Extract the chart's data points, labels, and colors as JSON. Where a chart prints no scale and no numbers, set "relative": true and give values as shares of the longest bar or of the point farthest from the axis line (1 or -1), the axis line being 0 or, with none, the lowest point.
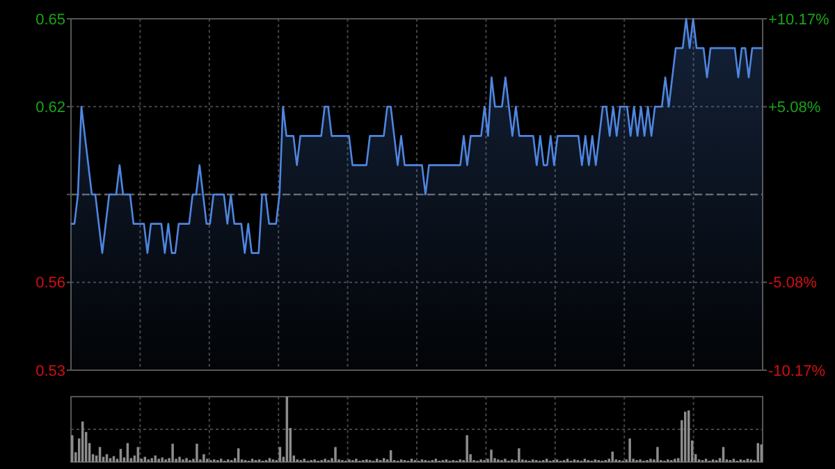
{
  "chart_data": [
    {
      "type": "area",
      "color": "#4f86e0",
      "grid": true,
      "ylim": [
        0.53,
        0.65
      ],
      "yticks": [
        0.53,
        0.56,
        {
          "value": 0.59,
          "label": null
        },
        0.62,
        0.65
      ],
      "y2lim": [
        -10.17,
        10.17
      ],
      "y2ticks": [
        {
          "value": -10.17,
          "label": "-10.17%"
        },
        {
          "value": -5.08,
          "label": "-5.08%"
        },
        {
          "value": 5.08,
          "label": "+5.08%"
        },
        {
          "value": 10.17,
          "label": "+10.17%"
        }
      ],
      "ref_lines": [
        {
          "axis": "y",
          "value": 0.59,
          "line_style": "dashed"
        }
      ],
      "categories": [
        null,
        null,
        null,
        null,
        null,
        null,
        null,
        null,
        null,
        null,
        null,
        null,
        null,
        null,
        null,
        null,
        null,
        null,
        null,
        null,
        null,
        null,
        null,
        null,
        null,
        null,
        null,
        null,
        null,
        null,
        null,
        null,
        null,
        null,
        null,
        null,
        null,
        null,
        null,
        null,
        null,
        null,
        null,
        null,
        null,
        null,
        null,
        null,
        null,
        null,
        null,
        null,
        null,
        null,
        null,
        null,
        null,
        null,
        null,
        null,
        null,
        null,
        null,
        null,
        null,
        null,
        null,
        null,
        null,
        null,
        null,
        null,
        null,
        null,
        null,
        null,
        null,
        null,
        null,
        null,
        null,
        null,
        null,
        null,
        null,
        null,
        null,
        null,
        null,
        null,
        null,
        null,
        null,
        null,
        null,
        null,
        null,
        null,
        null,
        null,
        null,
        null,
        null,
        null,
        null,
        null,
        null,
        null,
        null,
        null,
        null,
        null,
        null,
        null,
        null,
        null,
        null,
        null,
        null,
        null,
        null,
        null,
        null,
        null,
        null,
        null,
        null,
        null,
        null,
        null,
        null,
        null,
        null,
        null,
        null,
        null,
        null,
        null,
        null,
        null,
        null,
        null,
        null,
        null,
        null,
        null,
        null,
        null,
        null,
        null,
        null,
        null,
        null,
        null,
        null,
        null,
        null,
        null,
        null,
        null,
        null,
        null,
        null,
        null,
        null,
        null,
        null,
        null,
        null,
        null,
        null,
        null,
        null,
        null,
        null,
        null,
        null,
        null,
        null,
        null,
        null,
        null,
        null,
        null,
        null,
        null,
        null,
        null,
        null,
        null,
        null,
        null,
        null,
        null,
        null,
        null,
        null,
        null,
        null,
        null
      ],
      "values": [
        0.58,
        0.58,
        0.59,
        0.62,
        0.61,
        0.6,
        0.59,
        0.59,
        0.58,
        0.57,
        0.58,
        0.59,
        0.59,
        0.59,
        0.6,
        0.59,
        0.59,
        0.59,
        0.58,
        0.58,
        0.58,
        0.58,
        0.57,
        0.58,
        0.58,
        0.58,
        0.58,
        0.57,
        0.58,
        0.57,
        0.57,
        0.58,
        0.58,
        0.58,
        0.58,
        0.59,
        0.59,
        0.6,
        0.59,
        0.58,
        0.58,
        0.59,
        0.59,
        0.59,
        0.59,
        0.58,
        0.59,
        0.58,
        0.58,
        0.58,
        0.57,
        0.58,
        0.57,
        0.57,
        0.57,
        0.59,
        0.59,
        0.58,
        0.58,
        0.58,
        0.59,
        0.62,
        0.61,
        0.61,
        0.61,
        0.6,
        0.61,
        0.61,
        0.61,
        0.61,
        0.61,
        0.61,
        0.61,
        0.62,
        0.62,
        0.61,
        0.61,
        0.61,
        0.61,
        0.61,
        0.61,
        0.6,
        0.6,
        0.6,
        0.6,
        0.6,
        0.61,
        0.61,
        0.61,
        0.61,
        0.61,
        0.62,
        0.62,
        0.61,
        0.6,
        0.61,
        0.6,
        0.6,
        0.6,
        0.6,
        0.6,
        0.6,
        0.59,
        0.6,
        0.6,
        0.6,
        0.6,
        0.6,
        0.6,
        0.6,
        0.6,
        0.6,
        0.6,
        0.61,
        0.6,
        0.61,
        0.61,
        0.61,
        0.61,
        0.62,
        0.61,
        0.63,
        0.62,
        0.62,
        0.62,
        0.63,
        0.62,
        0.61,
        0.62,
        0.61,
        0.61,
        0.61,
        0.61,
        0.61,
        0.6,
        0.61,
        0.6,
        0.6,
        0.61,
        0.6,
        0.61,
        0.61,
        0.61,
        0.61,
        0.61,
        0.61,
        0.61,
        0.6,
        0.61,
        0.6,
        0.61,
        0.6,
        0.61,
        0.62,
        0.62,
        0.61,
        0.62,
        0.61,
        0.62,
        0.62,
        0.62,
        0.61,
        0.62,
        0.61,
        0.62,
        0.61,
        0.62,
        0.61,
        0.62,
        0.62,
        0.62,
        0.63,
        0.62,
        0.63,
        0.64,
        0.64,
        0.64,
        0.65,
        0.64,
        0.65,
        0.64,
        0.64,
        0.64,
        0.63,
        0.64,
        0.64,
        0.64,
        0.64,
        0.64,
        0.64,
        0.64,
        0.64,
        0.63,
        0.64,
        0.64,
        0.63,
        0.64,
        0.64,
        0.64,
        0.64
      ]
    },
    {
      "type": "bar",
      "relative": true,
      "color": "#8c8c8c",
      "grid": true,
      "categories": [
        null,
        null,
        null,
        null,
        null,
        null,
        null,
        null,
        null,
        null,
        null,
        null,
        null,
        null,
        null,
        null,
        null,
        null,
        null,
        null,
        null,
        null,
        null,
        null,
        null,
        null,
        null,
        null,
        null,
        null,
        null,
        null,
        null,
        null,
        null,
        null,
        null,
        null,
        null,
        null,
        null,
        null,
        null,
        null,
        null,
        null,
        null,
        null,
        null,
        null,
        null,
        null,
        null,
        null,
        null,
        null,
        null,
        null,
        null,
        null,
        null,
        null,
        null,
        null,
        null,
        null,
        null,
        null,
        null,
        null,
        null,
        null,
        null,
        null,
        null,
        null,
        null,
        null,
        null,
        null,
        null,
        null,
        null,
        null,
        null,
        null,
        null,
        null,
        null,
        null,
        null,
        null,
        null,
        null,
        null,
        null,
        null,
        null,
        null,
        null,
        null,
        null,
        null,
        null,
        null,
        null,
        null,
        null,
        null,
        null,
        null,
        null,
        null,
        null,
        null,
        null,
        null,
        null,
        null,
        null,
        null,
        null,
        null,
        null,
        null,
        null,
        null,
        null,
        null,
        null,
        null,
        null,
        null,
        null,
        null,
        null,
        null,
        null,
        null,
        null,
        null,
        null,
        null,
        null,
        null,
        null,
        null,
        null,
        null,
        null,
        null,
        null,
        null,
        null,
        null,
        null,
        null,
        null,
        null,
        null,
        null,
        null,
        null,
        null,
        null,
        null,
        null,
        null,
        null,
        null,
        null,
        null,
        null,
        null,
        null,
        null,
        null,
        null,
        null,
        null,
        null,
        null,
        null,
        null,
        null,
        null,
        null,
        null,
        null,
        null,
        null,
        null,
        null,
        null,
        null,
        null,
        null,
        null,
        null,
        null
      ],
      "values": [
        0.41,
        0.15,
        0.36,
        0.62,
        0.46,
        0.29,
        0.12,
        0.1,
        0.23,
        0.08,
        0.12,
        0.06,
        0.09,
        0.05,
        0.2,
        0.07,
        0.29,
        0.06,
        0.1,
        0.23,
        0.05,
        0.08,
        0.04,
        0.06,
        0.1,
        0.05,
        0.07,
        0.04,
        0.06,
        0.28,
        0.05,
        0.08,
        0.04,
        0.06,
        0.03,
        0.05,
        0.28,
        0.04,
        0.12,
        0.05,
        0.03,
        0.04,
        0.03,
        0.05,
        0.02,
        0.04,
        0.03,
        0.06,
        0.21,
        0.04,
        0.03,
        0.02,
        0.05,
        0.03,
        0.04,
        0.02,
        0.03,
        0.06,
        0.04,
        0.03,
        0.23,
        0.08,
        1.0,
        0.52,
        0.1,
        0.04,
        0.03,
        0.05,
        0.02,
        0.03,
        0.04,
        0.02,
        0.03,
        0.05,
        0.03,
        0.06,
        0.23,
        0.04,
        0.03,
        0.02,
        0.04,
        0.03,
        0.05,
        0.02,
        0.03,
        0.04,
        0.03,
        0.02,
        0.05,
        0.03,
        0.06,
        0.04,
        0.18,
        0.03,
        0.02,
        0.04,
        0.03,
        0.02,
        0.05,
        0.03,
        0.02,
        0.04,
        0.03,
        0.02,
        0.03,
        0.05,
        0.02,
        0.03,
        0.04,
        0.02,
        0.03,
        0.02,
        0.04,
        0.03,
        0.41,
        0.12,
        0.03,
        0.02,
        0.04,
        0.03,
        0.05,
        0.19,
        0.06,
        0.04,
        0.03,
        0.05,
        0.02,
        0.04,
        0.03,
        0.21,
        0.04,
        0.03,
        0.02,
        0.04,
        0.03,
        0.02,
        0.03,
        0.05,
        0.02,
        0.03,
        0.04,
        0.02,
        0.03,
        0.05,
        0.02,
        0.04,
        0.03,
        0.02,
        0.05,
        0.03,
        0.02,
        0.04,
        0.03,
        0.02,
        0.03,
        0.05,
        0.16,
        0.04,
        0.03,
        0.02,
        0.04,
        0.36,
        0.05,
        0.03,
        0.04,
        0.02,
        0.03,
        0.05,
        0.04,
        0.23,
        0.03,
        0.02,
        0.04,
        0.03,
        0.05,
        0.06,
        0.64,
        0.77,
        0.79,
        0.33,
        0.12,
        0.04,
        0.03,
        0.05,
        0.02,
        0.04,
        0.03,
        0.06,
        0.23,
        0.04,
        0.03,
        0.05,
        0.02,
        0.04,
        0.03,
        0.05,
        0.04,
        0.03,
        0.29,
        0.27
      ]
    }
  ]
}
